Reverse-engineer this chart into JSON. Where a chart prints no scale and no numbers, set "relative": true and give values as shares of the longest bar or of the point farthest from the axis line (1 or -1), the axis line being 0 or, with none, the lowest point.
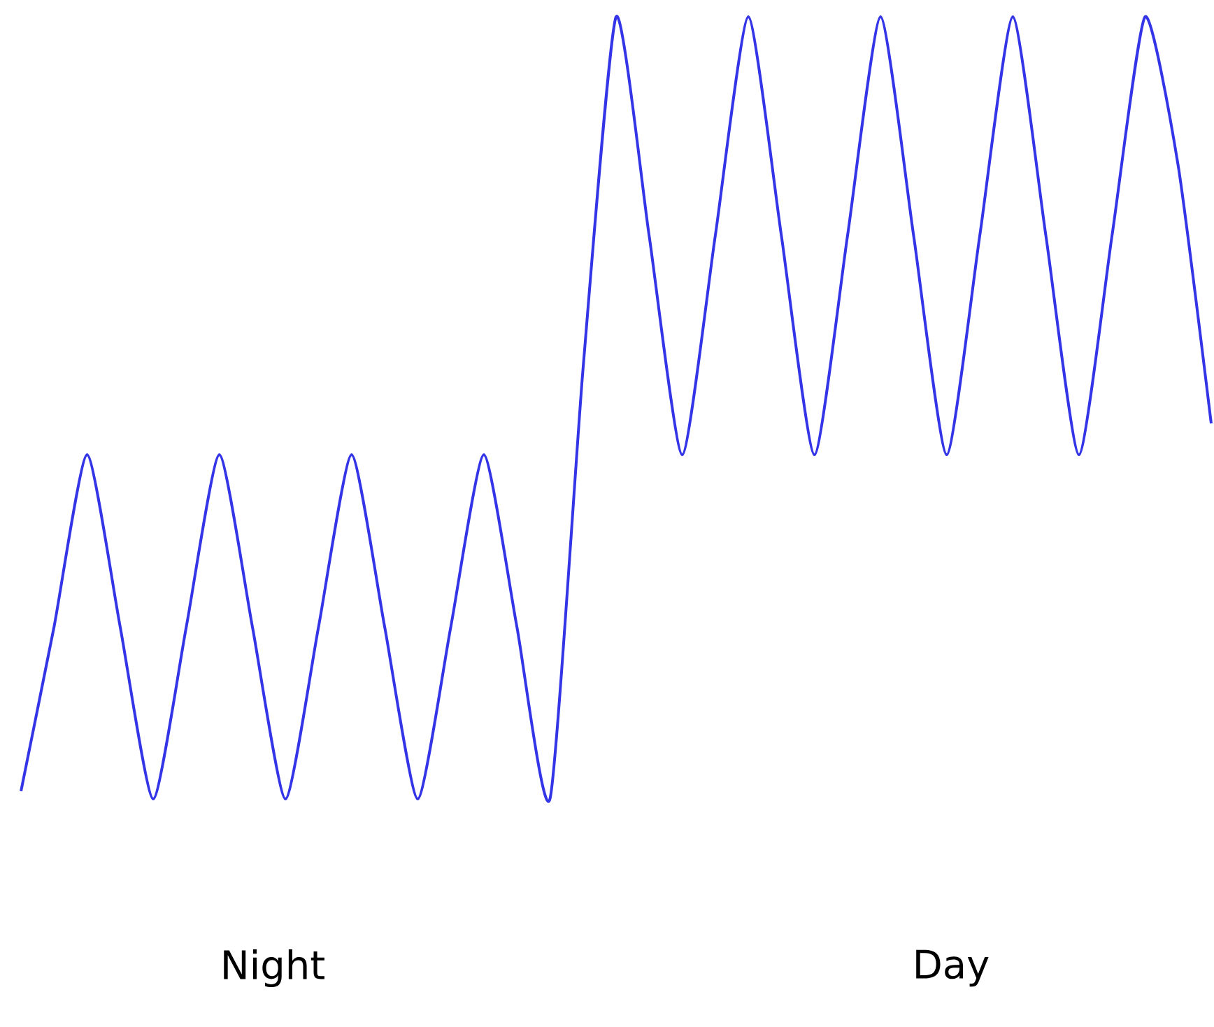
{
  "chart_data": {
    "type": "line",
    "relative": true,
    "color": "#3535e8",
    "categories": [
      null,
      null,
      null,
      null,
      null,
      null,
      null,
      null,
      null,
      null,
      null,
      null,
      null,
      null,
      null,
      null,
      null,
      null,
      null,
      null,
      null,
      null,
      null,
      null,
      null,
      null,
      null,
      null,
      null,
      null,
      null,
      null,
      null,
      null,
      null,
      null,
      null
    ],
    "values": [
      0.01,
      0.22,
      0.44,
      0.22,
      0,
      0.22,
      0.44,
      0.22,
      0,
      0.22,
      0.44,
      0.22,
      0,
      0.22,
      0.44,
      0.22,
      0,
      0.55,
      1,
      0.72,
      0.44,
      0.72,
      1,
      0.72,
      0.44,
      0.72,
      1,
      0.72,
      0.44,
      0.72,
      1,
      0.72,
      0.44,
      0.72,
      1,
      0.81,
      0.48
    ],
    "annotations": [
      "Night",
      "Day"
    ]
  }
}
